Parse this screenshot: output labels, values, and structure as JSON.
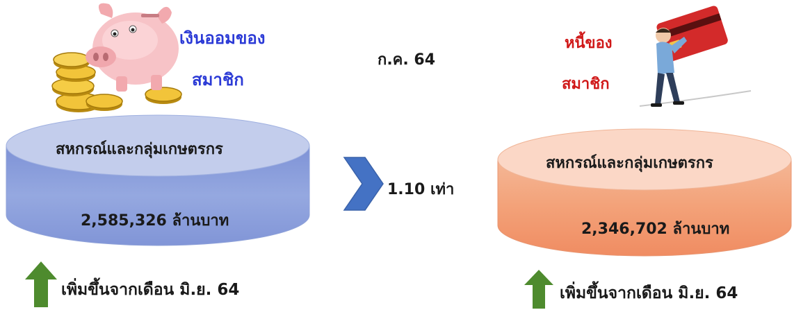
{
  "date_label": "ก.ค. 64",
  "savings": {
    "title_line1": "เงินออมของ",
    "title_line2": "สมาชิก",
    "cylinder_label": "สหกรณ์และกลุ่มเกษตรกร",
    "amount": "2,585,326 ล้านบาท",
    "change_note": "เพิ่มขึ้นจากเดือน มิ.ย. 64",
    "colors": {
      "title": "#2b3ad6",
      "cylinder": "#94a5dc"
    }
  },
  "ratio": {
    "label": "1.10 เท่า"
  },
  "debt": {
    "title_line1": "หนี้ของ",
    "title_line2": "สมาชิก",
    "cylinder_label": "สหกรณ์และกลุ่มเกษตรกร",
    "amount": "2,346,702 ล้านบาท",
    "change_note": "เพิ่มขึ้นจากเดือน มิ.ย. 64",
    "colors": {
      "title": "#d01818",
      "cylinder": "#f4a582"
    }
  },
  "icons": [
    "piggy-bank-icon",
    "gold-coins-icon",
    "man-carrying-credit-card-icon",
    "chevron-right-icon",
    "arrow-up-icon"
  ]
}
